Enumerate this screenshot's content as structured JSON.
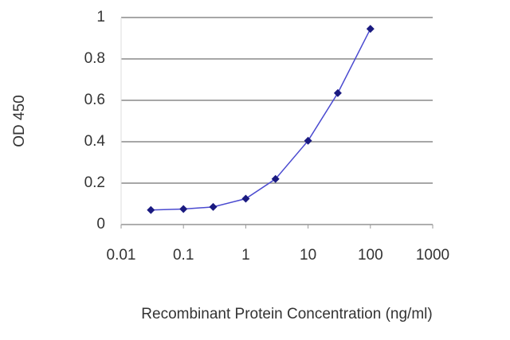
{
  "chart_data": {
    "type": "line",
    "x_label": "Recombinant Protein Concentration (ng/ml)",
    "y_label": "OD 450",
    "x": [
      0.03,
      0.1,
      0.3,
      1,
      3,
      10,
      30,
      100
    ],
    "series": [
      {
        "color": "#1a1a80",
        "line_color": "#4a4ad0",
        "values": [
          0.07,
          0.075,
          0.085,
          0.125,
          0.22,
          0.405,
          0.635,
          0.945
        ]
      }
    ],
    "x_log": true,
    "xlim": [
      0.01,
      1000
    ],
    "xticks": [
      0.01,
      0.1,
      1,
      10,
      100,
      1000
    ],
    "ylim": [
      0,
      1
    ],
    "yticks": [
      0,
      0.2,
      0.4,
      0.6,
      0.8,
      1
    ],
    "grid": true
  }
}
